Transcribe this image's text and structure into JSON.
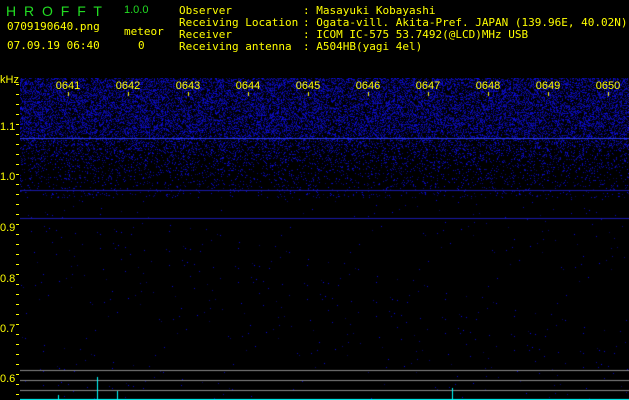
{
  "header": {
    "app_title": "H R O F F T",
    "version": "1.0.0",
    "filename": "0709190640.png",
    "datetime": "07.09.19 06:40",
    "meteor_label": "meteor",
    "meteor_count": "0"
  },
  "info": [
    {
      "label": "Observer",
      "value": "Masayuki Kobayashi"
    },
    {
      "label": "Receiving Location",
      "value": "Ogata-vill. Akita-Pref. JAPAN (139.96E, 40.02N)"
    },
    {
      "label": "Receiver",
      "value": "ICOM IC-575 53.7492(@LCD)MHz USB"
    },
    {
      "label": "Receiving antenna",
      "value": "A504HB(yagi 4el)"
    }
  ],
  "spectrogram": {
    "freq_unit": "kHz",
    "freq_labels": [
      "1.1",
      "1.0",
      "0.9",
      "0.8",
      "0.7",
      "0.6"
    ],
    "time_labels": [
      "0641",
      "0642",
      "0643",
      "0644",
      "0645",
      "0646",
      "0647",
      "0648",
      "0649",
      "0650"
    ],
    "colors": {
      "noise": "#2222cc",
      "axis_text": "#ffff00",
      "title": "#22dd22",
      "signal": "#00ffff"
    }
  }
}
